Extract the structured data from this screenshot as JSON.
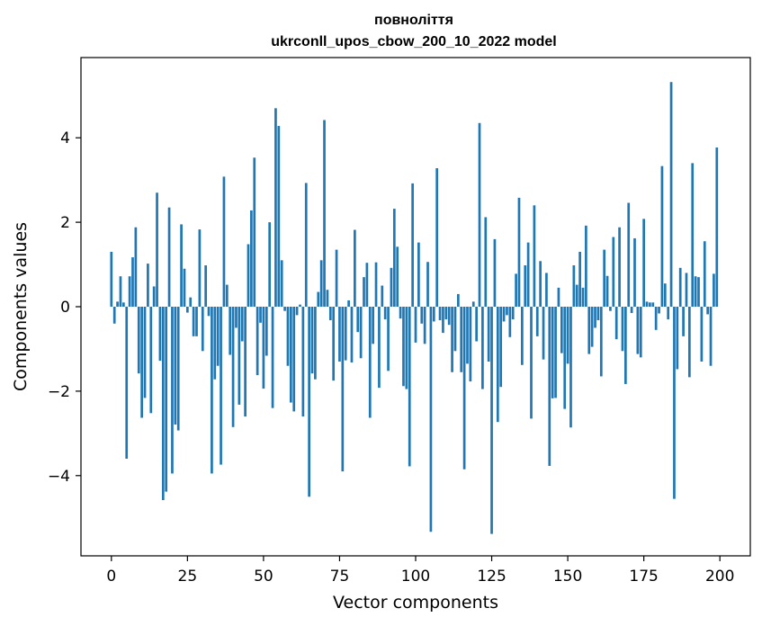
{
  "chart_data": {
    "type": "bar",
    "title": "повноліття",
    "subtitle": "ukrconll_upos_cbow_200_10_2022 model",
    "xlabel": "Vector components",
    "ylabel": "Components values",
    "xlim": [
      -10,
      210
    ],
    "ylim": [
      -5.9,
      5.9
    ],
    "xticks": [
      0,
      25,
      50,
      75,
      100,
      125,
      150,
      175,
      200
    ],
    "yticks": [
      -4,
      -2,
      0,
      2,
      4
    ],
    "grid": false,
    "bar_color": "#1f77b4",
    "x": [
      0,
      1,
      2,
      3,
      4,
      5,
      6,
      7,
      8,
      9,
      10,
      11,
      12,
      13,
      14,
      15,
      16,
      17,
      18,
      19,
      20,
      21,
      22,
      23,
      24,
      25,
      26,
      27,
      28,
      29,
      30,
      31,
      32,
      33,
      34,
      35,
      36,
      37,
      38,
      39,
      40,
      41,
      42,
      43,
      44,
      45,
      46,
      47,
      48,
      49,
      50,
      51,
      52,
      53,
      54,
      55,
      56,
      57,
      58,
      59,
      60,
      61,
      62,
      63,
      64,
      65,
      66,
      67,
      68,
      69,
      70,
      71,
      72,
      73,
      74,
      75,
      76,
      77,
      78,
      79,
      80,
      81,
      82,
      83,
      84,
      85,
      86,
      87,
      88,
      89,
      90,
      91,
      92,
      93,
      94,
      95,
      96,
      97,
      98,
      99,
      100,
      101,
      102,
      103,
      104,
      105,
      106,
      107,
      108,
      109,
      110,
      111,
      112,
      113,
      114,
      115,
      116,
      117,
      118,
      119,
      120,
      121,
      122,
      123,
      124,
      125,
      126,
      127,
      128,
      129,
      130,
      131,
      132,
      133,
      134,
      135,
      136,
      137,
      138,
      139,
      140,
      141,
      142,
      143,
      144,
      145,
      146,
      147,
      148,
      149,
      150,
      151,
      152,
      153,
      154,
      155,
      156,
      157,
      158,
      159,
      160,
      161,
      162,
      163,
      164,
      165,
      166,
      167,
      168,
      169,
      170,
      171,
      172,
      173,
      174,
      175,
      176,
      177,
      178,
      179,
      180,
      181,
      182,
      183,
      184,
      185,
      186,
      187,
      188,
      189,
      190,
      191,
      192,
      193,
      194,
      195,
      196,
      197,
      198,
      199
    ],
    "values": [
      1.3,
      -0.4,
      0.12,
      0.72,
      0.1,
      -3.6,
      0.72,
      1.17,
      1.88,
      -1.58,
      -2.63,
      -2.16,
      1.02,
      -2.52,
      0.48,
      2.7,
      -1.28,
      -4.58,
      -4.38,
      2.35,
      -3.95,
      -2.79,
      -2.93,
      1.95,
      0.9,
      -0.14,
      0.22,
      -0.7,
      -0.7,
      1.83,
      -1.05,
      0.98,
      -0.22,
      -3.95,
      -1.72,
      -1.4,
      -3.74,
      3.08,
      0.52,
      -1.14,
      -2.85,
      -0.5,
      -2.32,
      -0.82,
      -2.6,
      1.48,
      2.28,
      3.53,
      -1.62,
      -0.38,
      -1.94,
      -1.16,
      2.0,
      -2.4,
      4.7,
      4.28,
      1.1,
      -0.1,
      -1.4,
      -2.27,
      -2.48,
      -0.2,
      0.05,
      -2.6,
      2.93,
      -4.5,
      -1.58,
      -1.72,
      0.35,
      1.1,
      4.42,
      0.4,
      -0.32,
      -1.75,
      1.35,
      -1.3,
      -3.9,
      -1.27,
      0.15,
      -1.32,
      1.82,
      -0.6,
      -1.22,
      0.7,
      1.04,
      -2.63,
      -0.88,
      1.05,
      -1.92,
      0.5,
      -0.3,
      -1.52,
      0.92,
      2.32,
      1.42,
      -0.28,
      -1.88,
      -1.95,
      -3.78,
      2.92,
      -0.85,
      1.52,
      -0.4,
      -0.88,
      1.06,
      -5.33,
      -0.35,
      3.28,
      -0.32,
      -0.62,
      -0.3,
      -0.43,
      -1.55,
      -1.05,
      0.3,
      -1.55,
      -3.85,
      -1.35,
      -1.77,
      0.12,
      -0.82,
      4.35,
      -1.95,
      2.12,
      -1.3,
      -5.38,
      1.6,
      -2.73,
      -1.9,
      -0.35,
      -0.2,
      -0.72,
      -0.3,
      0.78,
      2.58,
      -1.38,
      0.98,
      1.52,
      -2.65,
      2.4,
      -0.7,
      1.08,
      -1.25,
      0.8,
      -3.77,
      -2.17,
      -2.16,
      0.45,
      -1.1,
      -2.42,
      -1.35,
      -2.86,
      0.98,
      0.52,
      1.3,
      0.45,
      1.92,
      -1.12,
      -0.95,
      -0.5,
      -0.32,
      -1.65,
      1.35,
      0.73,
      -0.1,
      1.65,
      -0.77,
      1.88,
      -1.05,
      -1.83,
      2.46,
      -0.15,
      1.62,
      -1.12,
      -1.2,
      2.08,
      0.12,
      0.1,
      0.1,
      -0.55,
      -0.16,
      3.33,
      0.55,
      -0.3,
      5.32,
      -4.55,
      -1.48,
      0.92,
      -0.7,
      0.8,
      -1.67,
      3.4,
      0.72,
      0.7,
      -1.3,
      1.55,
      -0.18,
      -1.4,
      0.78,
      3.77
    ]
  }
}
